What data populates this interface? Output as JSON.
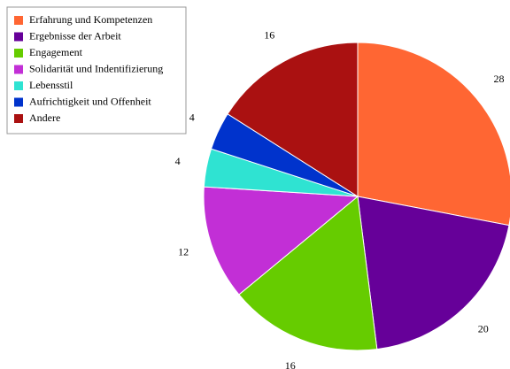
{
  "chart_data": {
    "type": "pie",
    "categories": [
      "Erfahrung und Kompetenzen",
      "Ergebnisse der Arbeit",
      "Engagement",
      "Solidarität und Indentifizierung",
      "Lebensstil",
      "Aufrichtigkeit und Offenheit",
      "Andere"
    ],
    "values": [
      28,
      20,
      16,
      12,
      4,
      4,
      16
    ],
    "colors": [
      "#ff6633",
      "#660099",
      "#66cc00",
      "#c22fd6",
      "#2fe3d2",
      "#0033cc",
      "#aa1111"
    ],
    "legend": "top-left"
  }
}
